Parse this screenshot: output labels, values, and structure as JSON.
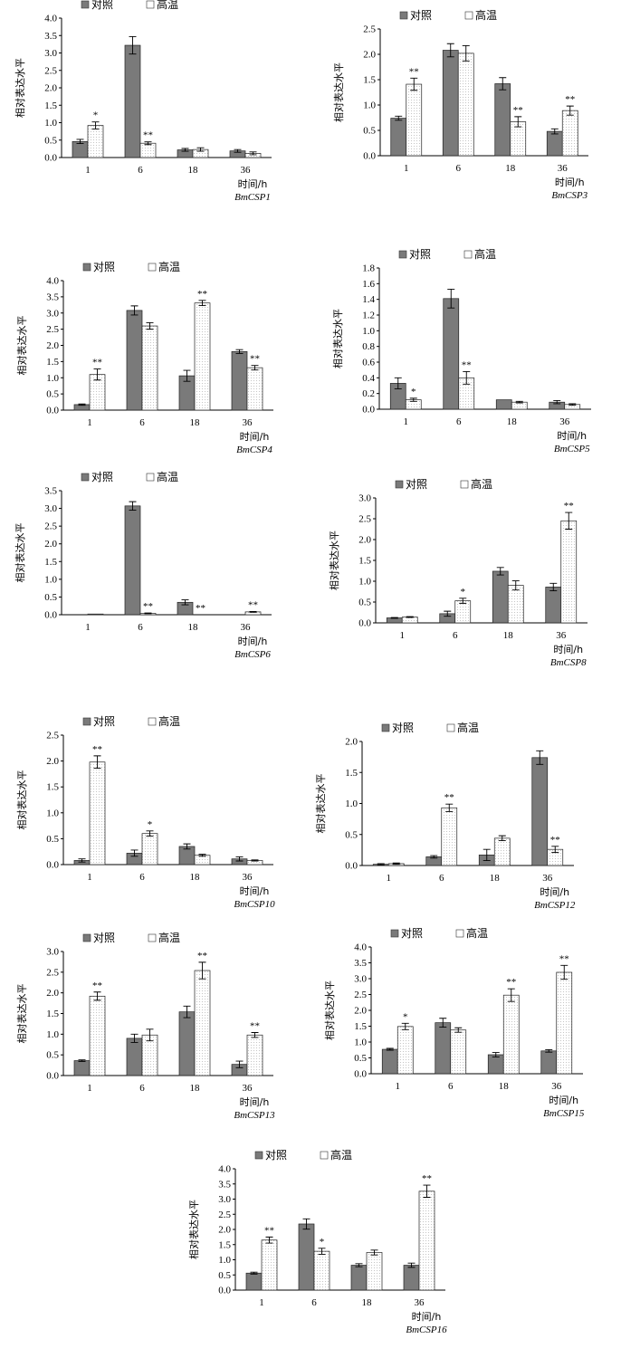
{
  "chart_data": [
    {
      "type": "bar",
      "gene": "BmCSP1",
      "ylabel": "相对表达水平",
      "xlabel": "时间/h",
      "categories": [
        "1",
        "6",
        "18",
        "36"
      ],
      "ylim": [
        0,
        4
      ],
      "yticks": [
        "0.0",
        "0.5",
        "1.0",
        "1.5",
        "2.0",
        "2.5",
        "3.0",
        "3.5",
        "4.0"
      ],
      "series": [
        {
          "name": "对照",
          "values": [
            0.46,
            3.22,
            0.22,
            0.19
          ],
          "errors": [
            0.06,
            0.25,
            0.04,
            0.04
          ]
        },
        {
          "name": "高温",
          "values": [
            0.92,
            0.41,
            0.23,
            0.12
          ],
          "errors": [
            0.1,
            0.04,
            0.05,
            0.04
          ]
        }
      ],
      "significance": [
        [
          "",
          "",
          "",
          " "
        ],
        [
          "*",
          "**",
          "",
          ""
        ]
      ]
    },
    {
      "type": "bar",
      "gene": "BmCSP3",
      "ylabel": "相对表达水平",
      "xlabel": "时间/h",
      "categories": [
        "1",
        "6",
        "18",
        "36"
      ],
      "ylim": [
        0,
        2.5
      ],
      "yticks": [
        "0.0",
        "0.5",
        "1.0",
        "1.5",
        "2.0",
        "2.5"
      ],
      "series": [
        {
          "name": "对照",
          "values": [
            0.74,
            2.08,
            1.42,
            0.48
          ],
          "errors": [
            0.04,
            0.13,
            0.12,
            0.05
          ]
        },
        {
          "name": "高温",
          "values": [
            1.41,
            2.02,
            0.67,
            0.89
          ],
          "errors": [
            0.12,
            0.15,
            0.1,
            0.09
          ]
        }
      ],
      "significance": [
        [
          "",
          "",
          "",
          ""
        ],
        [
          "**",
          "",
          "**",
          "**"
        ]
      ]
    },
    {
      "type": "bar",
      "gene": "BmCSP4",
      "ylabel": "相对表达水平",
      "xlabel": "时间/h",
      "categories": [
        "1",
        "6",
        "18",
        "36"
      ],
      "ylim": [
        0,
        4
      ],
      "yticks": [
        "0.0",
        "0.5",
        "1.0",
        "1.5",
        "2.0",
        "2.5",
        "3.0",
        "3.5",
        "4.0"
      ],
      "series": [
        {
          "name": "对照",
          "values": [
            0.17,
            3.08,
            1.06,
            1.81
          ],
          "errors": [
            0.02,
            0.14,
            0.17,
            0.06
          ]
        },
        {
          "name": "高温",
          "values": [
            1.1,
            2.6,
            3.31,
            1.31
          ],
          "errors": [
            0.17,
            0.1,
            0.08,
            0.07
          ]
        }
      ],
      "significance": [
        [
          "",
          "",
          "",
          ""
        ],
        [
          "**",
          "",
          "**",
          "**"
        ]
      ]
    },
    {
      "type": "bar",
      "gene": "BmCSP5",
      "ylabel": "相对表达水平",
      "xlabel": "时间/h",
      "categories": [
        "1",
        "6",
        "18",
        "36"
      ],
      "ylim": [
        0,
        1.8
      ],
      "yticks": [
        "0.0",
        "0.2",
        "0.4",
        "0.6",
        "0.8",
        "1.0",
        "1.2",
        "1.4",
        "1.6",
        "1.8"
      ],
      "series": [
        {
          "name": "对照",
          "values": [
            0.33,
            1.41,
            0.12,
            0.09
          ],
          "errors": [
            0.07,
            0.12,
            0.0,
            0.02
          ]
        },
        {
          "name": "高温",
          "values": [
            0.12,
            0.4,
            0.09,
            0.06
          ],
          "errors": [
            0.02,
            0.08,
            0.01,
            0.01
          ]
        }
      ],
      "significance": [
        [
          "",
          "",
          "",
          ""
        ],
        [
          "*",
          "**",
          "",
          ""
        ]
      ]
    },
    {
      "type": "bar",
      "gene": "BmCSP6",
      "ylabel": "相对表达水平",
      "xlabel": "时间/h",
      "categories": [
        "1",
        "6",
        "18",
        "36"
      ],
      "ylim": [
        0,
        3.5
      ],
      "yticks": [
        "0.0",
        "0.5",
        "1.0",
        "1.5",
        "2.0",
        "2.5",
        "3.0",
        "3.5"
      ],
      "series": [
        {
          "name": "对照",
          "values": [
            0.0,
            3.07,
            0.35,
            0.0
          ],
          "errors": [
            0.0,
            0.12,
            0.07,
            0.0
          ]
        },
        {
          "name": "高温",
          "values": [
            0.02,
            0.04,
            0.0,
            0.08
          ],
          "errors": [
            0.0,
            0.01,
            0.0,
            0.01
          ]
        }
      ],
      "significance": [
        [
          "",
          "",
          "",
          ""
        ],
        [
          "",
          "**",
          "**",
          "**"
        ]
      ]
    },
    {
      "type": "bar",
      "gene": "BmCSP8",
      "ylabel": "相对表达水平",
      "xlabel": "时间/h",
      "categories": [
        "1",
        "6",
        "18",
        "36"
      ],
      "ylim": [
        0,
        3
      ],
      "yticks": [
        "0.0",
        "0.5",
        "1.0",
        "1.5",
        "2.0",
        "2.5",
        "3.0"
      ],
      "series": [
        {
          "name": "对照",
          "values": [
            0.12,
            0.22,
            1.24,
            0.86
          ],
          "errors": [
            0.01,
            0.06,
            0.09,
            0.09
          ]
        },
        {
          "name": "高温",
          "values": [
            0.14,
            0.53,
            0.9,
            2.45
          ],
          "errors": [
            0.01,
            0.06,
            0.11,
            0.2
          ]
        }
      ],
      "significance": [
        [
          "",
          "",
          "",
          ""
        ],
        [
          "",
          "*",
          "",
          "**"
        ]
      ]
    },
    {
      "type": "bar",
      "gene": "BmCSP10",
      "ylabel": "相对表达水平",
      "xlabel": "时间/h",
      "categories": [
        "1",
        "6",
        "18",
        "36"
      ],
      "ylim": [
        0,
        2.5
      ],
      "yticks": [
        "0.0",
        "0.5",
        "1.0",
        "1.5",
        "2.0",
        "2.5"
      ],
      "series": [
        {
          "name": "对照",
          "values": [
            0.08,
            0.22,
            0.35,
            0.11
          ],
          "errors": [
            0.03,
            0.06,
            0.05,
            0.04
          ]
        },
        {
          "name": "高温",
          "values": [
            1.98,
            0.6,
            0.18,
            0.08
          ],
          "errors": [
            0.12,
            0.05,
            0.02,
            0.01
          ]
        }
      ],
      "significance": [
        [
          "",
          "",
          "",
          ""
        ],
        [
          "**",
          "*",
          "",
          ""
        ]
      ]
    },
    {
      "type": "bar",
      "gene": "BmCSP12",
      "ylabel": "相对表达水平",
      "xlabel": "时间/h",
      "categories": [
        "1",
        "6",
        "18",
        "36"
      ],
      "ylim": [
        0,
        2
      ],
      "yticks": [
        "0.0",
        "0.5",
        "1.0",
        "1.5",
        "2.0"
      ],
      "series": [
        {
          "name": "对照",
          "values": [
            0.02,
            0.14,
            0.17,
            1.74
          ],
          "errors": [
            0.01,
            0.02,
            0.09,
            0.11
          ]
        },
        {
          "name": "高温",
          "values": [
            0.03,
            0.93,
            0.44,
            0.26
          ],
          "errors": [
            0.01,
            0.06,
            0.04,
            0.05
          ]
        }
      ],
      "significance": [
        [
          "",
          "",
          "",
          ""
        ],
        [
          "",
          "**",
          "",
          "**"
        ]
      ]
    },
    {
      "type": "bar",
      "gene": "BmCSP13",
      "ylabel": "相对表达水平",
      "xlabel": "时间/h",
      "categories": [
        "1",
        "6",
        "18",
        "36"
      ],
      "ylim": [
        0,
        3
      ],
      "yticks": [
        "0.0",
        "0.5",
        "1.0",
        "1.5",
        "2.0",
        "2.5",
        "3.0"
      ],
      "series": [
        {
          "name": "对照",
          "values": [
            0.36,
            0.9,
            1.54,
            0.27
          ],
          "errors": [
            0.02,
            0.1,
            0.14,
            0.08
          ]
        },
        {
          "name": "高温",
          "values": [
            1.92,
            0.98,
            2.54,
            0.98
          ],
          "errors": [
            0.1,
            0.14,
            0.2,
            0.06
          ]
        }
      ],
      "significance": [
        [
          "",
          "",
          "",
          ""
        ],
        [
          "**",
          "",
          "**",
          "**"
        ]
      ]
    },
    {
      "type": "bar",
      "gene": "BmCSP15",
      "ylabel": "相对表达水平",
      "xlabel": "时间/h",
      "categories": [
        "1",
        "6",
        "18",
        "36"
      ],
      "ylim": [
        0,
        4
      ],
      "yticks": [
        "0.0",
        "0.5",
        "1.0",
        "1.5",
        "2.0",
        "2.5",
        "3.0",
        "3.5",
        "4.0"
      ],
      "series": [
        {
          "name": "对照",
          "values": [
            0.77,
            1.61,
            0.6,
            0.72
          ],
          "errors": [
            0.03,
            0.14,
            0.07,
            0.04
          ]
        },
        {
          "name": "高温",
          "values": [
            1.49,
            1.38,
            2.48,
            3.2
          ],
          "errors": [
            0.1,
            0.07,
            0.2,
            0.22
          ]
        }
      ],
      "significance": [
        [
          "",
          "",
          "",
          ""
        ],
        [
          "*",
          "",
          "**",
          "**"
        ]
      ]
    },
    {
      "type": "bar",
      "gene": "BmCSP16",
      "ylabel": "相对表达水平",
      "xlabel": "时间/h",
      "categories": [
        "1",
        "6",
        "18",
        "36"
      ],
      "ylim": [
        0,
        4
      ],
      "yticks": [
        "0.0",
        "0.5",
        "1.0",
        "1.5",
        "2.0",
        "2.5",
        "3.0",
        "3.5",
        "4.0"
      ],
      "series": [
        {
          "name": "对照",
          "values": [
            0.56,
            2.18,
            0.82,
            0.82
          ],
          "errors": [
            0.03,
            0.17,
            0.05,
            0.07
          ]
        },
        {
          "name": "高温",
          "values": [
            1.65,
            1.28,
            1.24,
            3.26
          ],
          "errors": [
            0.1,
            0.1,
            0.08,
            0.2
          ]
        }
      ],
      "significance": [
        [
          "",
          "",
          "",
          ""
        ],
        [
          "**",
          "*",
          "",
          "**"
        ]
      ]
    }
  ],
  "colors": {
    "control": "#7a7a7a",
    "heat": "#ffffff",
    "heat_dots": "#b8b8b8",
    "axis": "#000000"
  }
}
